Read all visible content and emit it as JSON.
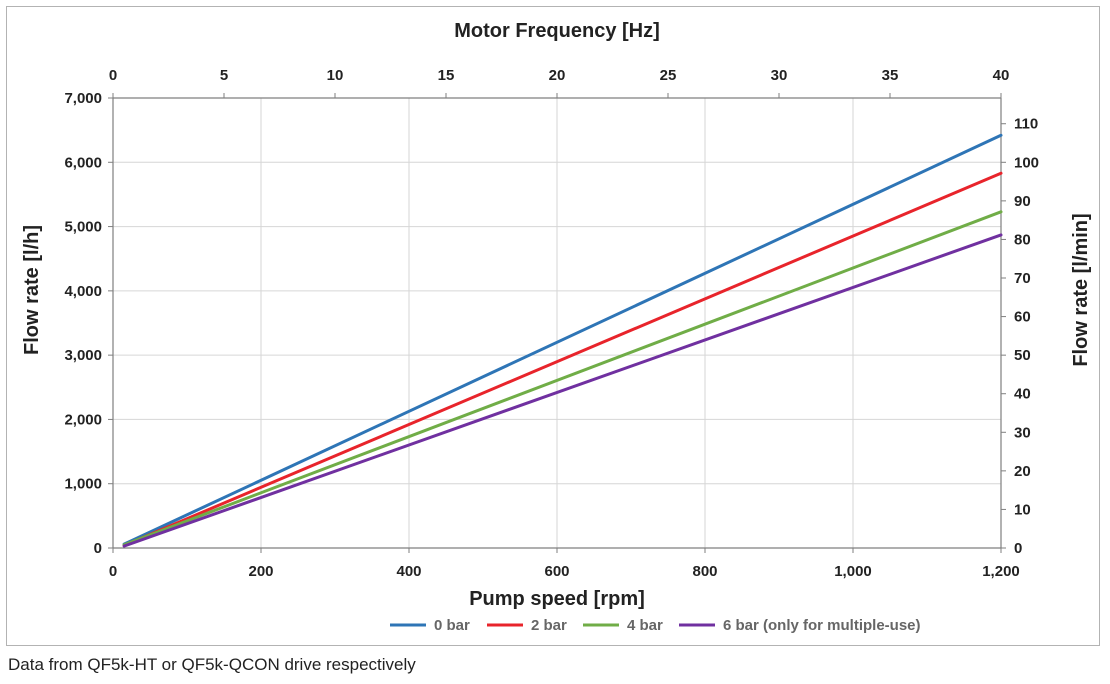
{
  "footnote": "Data from QF5k-HT or QF5k-QCON drive respectively",
  "chart_data": {
    "type": "line",
    "xlabel": "Pump speed [rpm]",
    "x2label": "Motor Frequency [Hz]",
    "ylabel": "Flow rate [l/h]",
    "y2label": "Flow rate [l/min]",
    "xlim": [
      0,
      1200
    ],
    "ylim": [
      0,
      7000
    ],
    "x2lim": [
      0,
      40
    ],
    "y2lim": [
      0,
      116.67
    ],
    "xticks": [
      0,
      200,
      400,
      600,
      800,
      1000,
      1200
    ],
    "xtick_labels": [
      "0",
      "200",
      "400",
      "600",
      "800",
      "1,000",
      "1,200"
    ],
    "yticks": [
      0,
      1000,
      2000,
      3000,
      4000,
      5000,
      6000,
      7000
    ],
    "ytick_labels": [
      "0",
      "1,000",
      "2,000",
      "3,000",
      "4,000",
      "5,000",
      "6,000",
      "7,000"
    ],
    "x2ticks": [
      0,
      5,
      10,
      15,
      20,
      25,
      30,
      35,
      40
    ],
    "x2tick_labels": [
      "0",
      "5",
      "10",
      "15",
      "20",
      "25",
      "30",
      "35",
      "40"
    ],
    "y2ticks": [
      0,
      10,
      20,
      30,
      40,
      50,
      60,
      70,
      80,
      90,
      100,
      110
    ],
    "y2tick_labels": [
      "0",
      "10",
      "20",
      "30",
      "40",
      "50",
      "60",
      "70",
      "80",
      "90",
      "100",
      "110"
    ],
    "grid": true,
    "legend_position": "bottom",
    "series": [
      {
        "name": "0 bar",
        "legend_label": "0 bar",
        "color": "#2e75b6",
        "x": [
          15,
          1200
        ],
        "y": [
          60,
          6420
        ]
      },
      {
        "name": "2 bar",
        "legend_label": "2 bar",
        "color": "#e8242b",
        "x": [
          15,
          1200
        ],
        "y": [
          40,
          5830
        ]
      },
      {
        "name": "4 bar",
        "legend_label": "4 bar",
        "color": "#70ad47",
        "x": [
          15,
          1200
        ],
        "y": [
          50,
          5230
        ]
      },
      {
        "name": "6 bar",
        "legend_label": "6 bar  (only for multiple-use)",
        "color": "#7030a0",
        "x": [
          15,
          1200
        ],
        "y": [
          30,
          4870
        ]
      }
    ]
  }
}
